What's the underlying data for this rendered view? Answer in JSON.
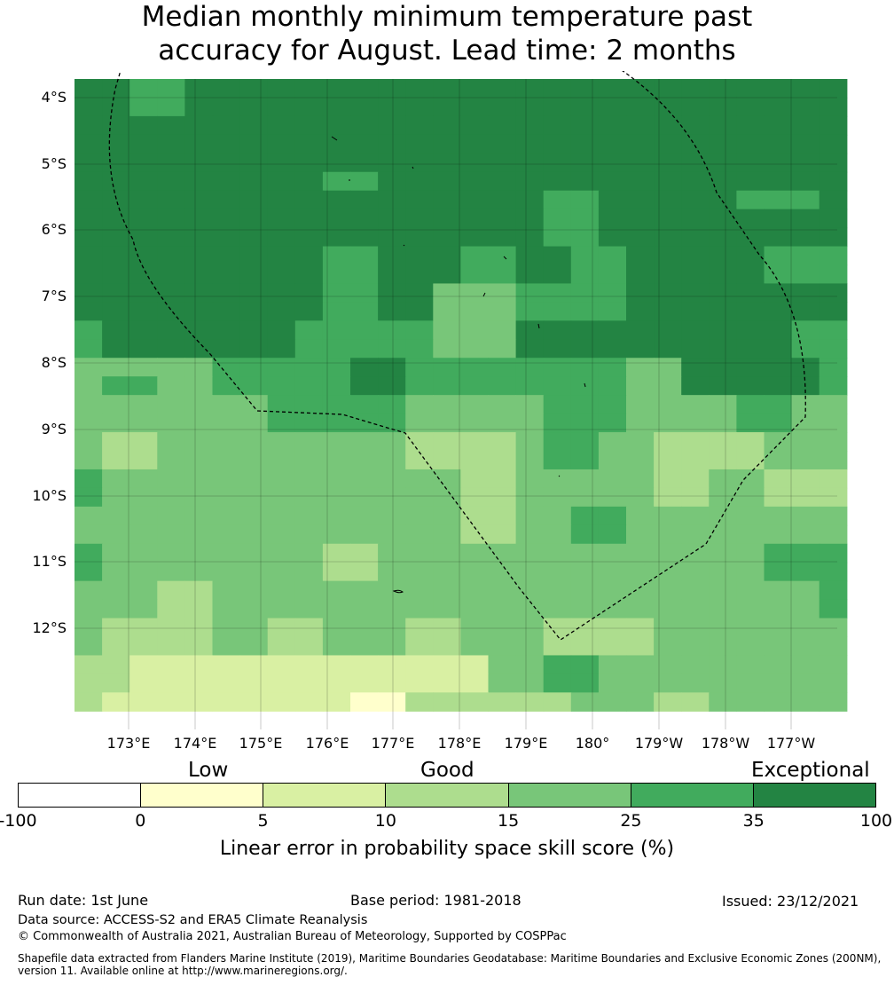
{
  "title": {
    "line1": "Median monthly minimum temperature past",
    "line2": "accuracy for August. Lead time: 2 months"
  },
  "map": {
    "latitude_labels": [
      "4°S",
      "5°S",
      "6°S",
      "7°S",
      "8°S",
      "9°S",
      "10°S",
      "11°S",
      "12°S"
    ],
    "longitude_labels": [
      "173°E",
      "174°E",
      "175°E",
      "176°E",
      "177°E",
      "178°E",
      "179°E",
      "180°",
      "179°W",
      "178°W",
      "177°W"
    ],
    "colors": [
      "#ffffff",
      "#ffffcc",
      "#d9f0a3",
      "#addd8e",
      "#78c679",
      "#41ab5d",
      "#238443"
    ],
    "grid_values": [
      [
        6,
        6,
        5,
        5,
        6,
        6,
        6,
        6,
        6,
        6,
        6,
        6,
        6,
        6,
        6,
        6,
        6,
        6,
        6,
        6,
        6,
        6,
        6,
        6,
        6,
        6,
        6,
        6
      ],
      [
        6,
        6,
        5,
        5,
        6,
        6,
        6,
        6,
        6,
        6,
        6,
        6,
        6,
        6,
        6,
        6,
        6,
        6,
        6,
        6,
        6,
        6,
        6,
        6,
        6,
        6,
        6,
        6
      ],
      [
        6,
        6,
        6,
        6,
        6,
        6,
        6,
        6,
        6,
        6,
        6,
        6,
        6,
        6,
        6,
        6,
        6,
        6,
        6,
        6,
        6,
        6,
        6,
        6,
        6,
        6,
        6,
        6
      ],
      [
        6,
        6,
        6,
        6,
        6,
        6,
        6,
        6,
        6,
        6,
        6,
        6,
        6,
        6,
        6,
        6,
        6,
        6,
        6,
        6,
        6,
        6,
        6,
        6,
        6,
        6,
        6,
        6
      ],
      [
        6,
        6,
        6,
        6,
        6,
        6,
        6,
        6,
        6,
        6,
        6,
        6,
        6,
        6,
        6,
        6,
        6,
        6,
        6,
        6,
        6,
        6,
        6,
        6,
        6,
        6,
        6,
        6
      ],
      [
        6,
        6,
        6,
        6,
        6,
        6,
        6,
        6,
        6,
        5,
        5,
        6,
        6,
        6,
        6,
        6,
        6,
        6,
        6,
        6,
        6,
        6,
        6,
        6,
        6,
        6,
        6,
        6
      ],
      [
        6,
        6,
        6,
        6,
        6,
        6,
        6,
        6,
        6,
        6,
        6,
        6,
        6,
        6,
        6,
        6,
        6,
        5,
        5,
        6,
        6,
        6,
        6,
        6,
        5,
        5,
        5,
        6
      ],
      [
        6,
        6,
        6,
        6,
        6,
        6,
        6,
        6,
        6,
        6,
        6,
        6,
        6,
        6,
        6,
        6,
        6,
        5,
        5,
        6,
        6,
        6,
        6,
        6,
        6,
        6,
        6,
        6
      ],
      [
        6,
        6,
        6,
        6,
        6,
        6,
        6,
        6,
        6,
        6,
        6,
        6,
        6,
        6,
        6,
        6,
        6,
        5,
        5,
        6,
        6,
        6,
        6,
        6,
        6,
        6,
        6,
        6
      ],
      [
        6,
        6,
        6,
        6,
        6,
        6,
        6,
        6,
        6,
        5,
        5,
        6,
        6,
        6,
        5,
        5,
        6,
        6,
        5,
        5,
        6,
        6,
        6,
        6,
        6,
        5,
        5,
        5
      ],
      [
        6,
        6,
        6,
        6,
        6,
        6,
        6,
        6,
        6,
        5,
        5,
        6,
        6,
        6,
        5,
        5,
        6,
        6,
        5,
        5,
        6,
        6,
        6,
        6,
        6,
        5,
        5,
        5
      ],
      [
        6,
        6,
        6,
        6,
        6,
        6,
        6,
        6,
        6,
        5,
        5,
        6,
        6,
        4,
        4,
        4,
        5,
        5,
        5,
        5,
        6,
        6,
        6,
        6,
        6,
        6,
        6,
        6
      ],
      [
        6,
        6,
        6,
        6,
        6,
        6,
        6,
        6,
        6,
        5,
        5,
        6,
        6,
        4,
        4,
        4,
        5,
        5,
        5,
        5,
        6,
        6,
        6,
        6,
        6,
        6,
        6,
        6
      ],
      [
        5,
        6,
        6,
        6,
        6,
        6,
        6,
        6,
        5,
        5,
        5,
        5,
        5,
        4,
        4,
        4,
        6,
        6,
        6,
        6,
        6,
        6,
        6,
        6,
        6,
        6,
        5,
        5
      ],
      [
        5,
        6,
        6,
        6,
        6,
        6,
        6,
        6,
        5,
        5,
        5,
        5,
        5,
        4,
        4,
        4,
        6,
        6,
        6,
        6,
        6,
        6,
        6,
        6,
        6,
        6,
        5,
        5
      ],
      [
        4,
        4,
        4,
        4,
        4,
        5,
        5,
        5,
        5,
        5,
        6,
        6,
        5,
        5,
        5,
        5,
        5,
        5,
        5,
        5,
        4,
        4,
        6,
        6,
        6,
        6,
        6,
        5
      ],
      [
        4,
        5,
        5,
        4,
        4,
        5,
        5,
        5,
        5,
        5,
        6,
        6,
        5,
        5,
        5,
        5,
        5,
        5,
        5,
        5,
        4,
        4,
        6,
        6,
        6,
        6,
        6,
        5
      ],
      [
        4,
        4,
        4,
        4,
        4,
        4,
        4,
        5,
        5,
        5,
        5,
        5,
        4,
        4,
        4,
        4,
        4,
        5,
        5,
        5,
        4,
        4,
        4,
        4,
        5,
        5,
        4,
        4
      ],
      [
        4,
        4,
        4,
        4,
        4,
        4,
        4,
        5,
        5,
        5,
        5,
        5,
        4,
        4,
        4,
        4,
        4,
        5,
        5,
        5,
        4,
        4,
        4,
        4,
        5,
        5,
        4,
        4
      ],
      [
        4,
        3,
        3,
        4,
        4,
        4,
        4,
        4,
        4,
        4,
        4,
        4,
        3,
        3,
        3,
        3,
        4,
        5,
        5,
        4,
        4,
        3,
        3,
        3,
        3,
        4,
        4,
        4
      ],
      [
        4,
        3,
        3,
        4,
        4,
        4,
        4,
        4,
        4,
        4,
        4,
        4,
        3,
        3,
        3,
        3,
        4,
        5,
        5,
        4,
        4,
        3,
        3,
        3,
        3,
        4,
        4,
        4
      ],
      [
        5,
        4,
        4,
        4,
        4,
        4,
        4,
        4,
        4,
        4,
        4,
        4,
        4,
        4,
        3,
        3,
        4,
        4,
        4,
        4,
        4,
        3,
        3,
        4,
        4,
        3,
        3,
        3
      ],
      [
        5,
        4,
        4,
        4,
        4,
        4,
        4,
        4,
        4,
        4,
        4,
        4,
        4,
        4,
        3,
        3,
        4,
        4,
        4,
        4,
        4,
        3,
        3,
        4,
        4,
        3,
        3,
        3
      ],
      [
        4,
        4,
        4,
        4,
        4,
        4,
        4,
        4,
        4,
        4,
        4,
        4,
        4,
        4,
        3,
        3,
        4,
        4,
        5,
        5,
        4,
        4,
        4,
        4,
        4,
        4,
        4,
        4
      ],
      [
        4,
        4,
        4,
        4,
        4,
        4,
        4,
        4,
        4,
        4,
        4,
        4,
        4,
        4,
        3,
        3,
        4,
        4,
        5,
        5,
        4,
        4,
        4,
        4,
        4,
        4,
        4,
        4
      ],
      [
        5,
        4,
        4,
        4,
        4,
        4,
        4,
        4,
        4,
        3,
        3,
        4,
        4,
        4,
        4,
        4,
        4,
        4,
        4,
        4,
        4,
        4,
        4,
        4,
        4,
        5,
        5,
        5
      ],
      [
        5,
        4,
        4,
        4,
        4,
        4,
        4,
        4,
        4,
        3,
        3,
        4,
        4,
        4,
        4,
        4,
        4,
        4,
        4,
        4,
        4,
        4,
        4,
        4,
        4,
        5,
        5,
        5
      ],
      [
        4,
        4,
        4,
        3,
        3,
        4,
        4,
        4,
        4,
        4,
        4,
        4,
        4,
        4,
        4,
        4,
        4,
        4,
        4,
        4,
        4,
        4,
        4,
        4,
        4,
        4,
        4,
        5
      ],
      [
        4,
        4,
        4,
        3,
        3,
        4,
        4,
        4,
        4,
        4,
        4,
        4,
        4,
        4,
        4,
        4,
        4,
        4,
        4,
        4,
        4,
        4,
        4,
        4,
        4,
        4,
        4,
        5
      ],
      [
        4,
        3,
        3,
        3,
        3,
        4,
        4,
        3,
        3,
        4,
        4,
        4,
        3,
        3,
        4,
        4,
        4,
        3,
        3,
        3,
        3,
        4,
        4,
        4,
        4,
        4,
        4,
        4
      ],
      [
        4,
        3,
        3,
        3,
        3,
        4,
        4,
        3,
        3,
        4,
        4,
        4,
        3,
        3,
        4,
        4,
        4,
        3,
        3,
        3,
        3,
        4,
        4,
        4,
        4,
        4,
        4,
        4
      ],
      [
        3,
        3,
        2,
        2,
        2,
        2,
        2,
        2,
        2,
        2,
        2,
        2,
        2,
        2,
        2,
        4,
        4,
        5,
        5,
        4,
        4,
        4,
        4,
        4,
        4,
        4,
        4,
        4
      ],
      [
        3,
        3,
        2,
        2,
        2,
        2,
        2,
        2,
        2,
        2,
        2,
        2,
        2,
        2,
        2,
        4,
        4,
        5,
        5,
        4,
        4,
        4,
        4,
        4,
        4,
        4,
        4,
        4
      ],
      [
        3,
        2,
        2,
        2,
        2,
        2,
        2,
        2,
        2,
        2,
        1,
        1,
        3,
        3,
        3,
        3,
        3,
        3,
        4,
        4,
        4,
        3,
        3,
        4,
        4,
        4,
        4,
        4
      ]
    ],
    "boundary_style": "dashed"
  },
  "legend": {
    "categories": [
      "Low",
      "Good",
      "Exceptional"
    ],
    "ticks": [
      "-100",
      "0",
      "5",
      "10",
      "15",
      "25",
      "35",
      "100"
    ],
    "title": "Linear error in probability space skill score (%)"
  },
  "footer": {
    "run_date": "Run date: 1st June",
    "base_period": "Base period: 1981-2018",
    "issued": "Issued: 23/12/2021",
    "data_source": "Data source: ACCESS-S2 and ERA5 Climate Reanalysis",
    "copyright": "© Commonwealth of Australia 2021, Australian Bureau of Meteorology, Supported by COSPPac",
    "shapefile": "Shapefile data extracted from Flanders Marine Institute (2019), Maritime Boundaries Geodatabase: Maritime Boundaries and Exclusive Economic Zones (200NM), version 11. Available online at http://www.marineregions.org/."
  }
}
